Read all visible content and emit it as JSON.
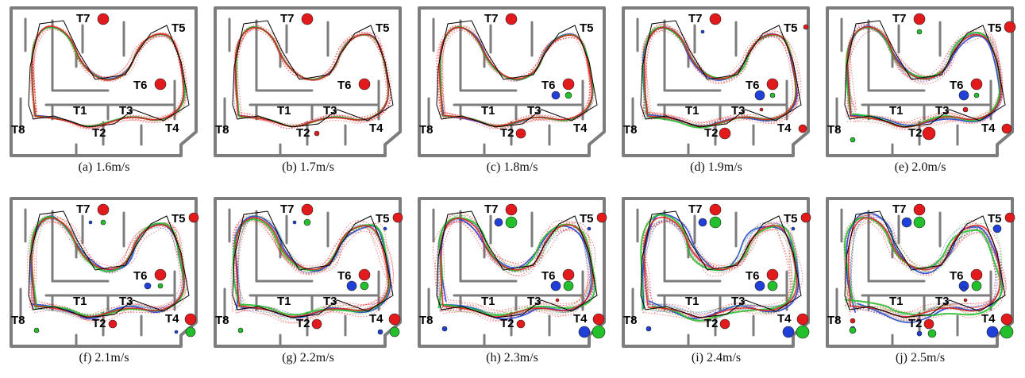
{
  "figure": {
    "panels": [
      {
        "caption": "(a)  1.6m/s",
        "red_noise": 0.6,
        "blue_noise": 0.2,
        "green_noise": 0.2,
        "markers": {
          "T7": {
            "red": 7
          },
          "T6": {
            "red": 7
          },
          "T2": {},
          "T4": {},
          "T5": {},
          "T8": {}
        }
      },
      {
        "caption": "(b)  1.7m/s",
        "red_noise": 0.7,
        "blue_noise": 0.2,
        "green_noise": 0.2,
        "markers": {
          "T7": {
            "red": 7
          },
          "T6": {
            "red": 7
          },
          "T2": {
            "red": 3
          },
          "T4": {},
          "T5": {},
          "T8": {}
        }
      },
      {
        "caption": "(c)  1.8m/s",
        "red_noise": 0.8,
        "blue_noise": 0.3,
        "green_noise": 0.3,
        "markers": {
          "T7": {
            "red": 7
          },
          "T6": {
            "red": 7,
            "blue": 5,
            "green": 4
          },
          "T2": {
            "red": 6
          },
          "T4": {},
          "T5": {},
          "T8": {}
        }
      },
      {
        "caption": "(d)  1.9m/s",
        "red_noise": 1.2,
        "blue_noise": 0.6,
        "green_noise": 0.6,
        "markers": {
          "T7": {
            "red": 7,
            "blue": 2
          },
          "T6": {
            "red": 7,
            "blue": 6,
            "green": 3
          },
          "T2": {
            "red": 7
          },
          "T3": {
            "red": 2
          },
          "T4": {
            "red": 5
          },
          "T5": {
            "red": 3
          },
          "T8": {}
        }
      },
      {
        "caption": "(e)  2.0m/s",
        "red_noise": 1.4,
        "blue_noise": 0.8,
        "green_noise": 0.8,
        "markers": {
          "T7": {
            "red": 7,
            "green": 3
          },
          "T6": {
            "red": 7,
            "blue": 6,
            "green": 3
          },
          "T2": {
            "red": 8
          },
          "T3": {
            "red": 3
          },
          "T4": {
            "red": 6
          },
          "T5": {
            "red": 7
          },
          "T8": {
            "green": 3
          }
        }
      },
      {
        "caption": "(f)  2.1m/s",
        "red_noise": 1.6,
        "blue_noise": 1.0,
        "green_noise": 1.0,
        "markers": {
          "T7": {
            "red": 7,
            "blue": 2,
            "green": 3
          },
          "T6": {
            "red": 7,
            "blue": 4,
            "green": 3
          },
          "T2": {
            "red": 5
          },
          "T4": {
            "red": 7,
            "blue": 2,
            "green": 6
          },
          "T5": {
            "red": 6
          },
          "T8": {
            "green": 3
          }
        }
      },
      {
        "caption": "(g)  2.2m/s",
        "red_noise": 1.8,
        "blue_noise": 1.2,
        "green_noise": 1.2,
        "markers": {
          "T7": {
            "red": 7,
            "blue": 2,
            "green": 4
          },
          "T6": {
            "red": 7,
            "blue": 6,
            "green": 5
          },
          "T2": {
            "red": 6
          },
          "T4": {
            "red": 7,
            "blue": 3,
            "green": 6
          },
          "T5": {
            "red": 6,
            "blue": 2
          },
          "T8": {
            "green": 3
          }
        }
      },
      {
        "caption": "(h)  2.3m/s",
        "red_noise": 2.0,
        "blue_noise": 1.5,
        "green_noise": 1.5,
        "markers": {
          "T7": {
            "red": 7,
            "blue": 5,
            "green": 7
          },
          "T6": {
            "red": 7,
            "blue": 6,
            "green": 6
          },
          "T2": {
            "red": 5
          },
          "T3": {
            "red": 2
          },
          "T4": {
            "red": 7,
            "blue": 7,
            "green": 8
          },
          "T5": {
            "red": 6,
            "blue": 2
          },
          "T8": {
            "blue": 3
          }
        }
      },
      {
        "caption": "(i)  2.4m/s",
        "red_noise": 2.2,
        "blue_noise": 1.8,
        "green_noise": 1.8,
        "markers": {
          "T7": {
            "red": 7,
            "blue": 5,
            "green": 7
          },
          "T6": {
            "red": 7,
            "blue": 6,
            "green": 6
          },
          "T2": {
            "red": 6
          },
          "T4": {
            "red": 7,
            "blue": 7,
            "green": 8
          },
          "T5": {
            "red": 6,
            "blue": 2
          },
          "T8": {
            "blue": 3
          }
        }
      },
      {
        "caption": "(j)  2.5m/s",
        "red_noise": 2.4,
        "blue_noise": 2.2,
        "green_noise": 2.2,
        "markers": {
          "T7": {
            "red": 7,
            "blue": 6,
            "green": 7
          },
          "T6": {
            "red": 7,
            "blue": 6,
            "green": 6
          },
          "T2": {
            "red": 6,
            "blue": 3,
            "green": 5
          },
          "T3": {
            "red": 2,
            "blue": 3
          },
          "T4": {
            "red": 7,
            "blue": 7,
            "green": 8
          },
          "T5": {
            "red": 6,
            "blue": 5
          },
          "T8": {
            "red": 3,
            "blue": 3,
            "green": 4
          }
        }
      }
    ],
    "targets": [
      "T1",
      "T2",
      "T3",
      "T4",
      "T5",
      "T6",
      "T7",
      "T8"
    ],
    "colors": {
      "wall": "#7d7d7d",
      "reference": "#000000",
      "red": "#e31a1c",
      "blue": "#1f3fd8",
      "green": "#22c02a",
      "marker_stroke": "#222222"
    }
  }
}
